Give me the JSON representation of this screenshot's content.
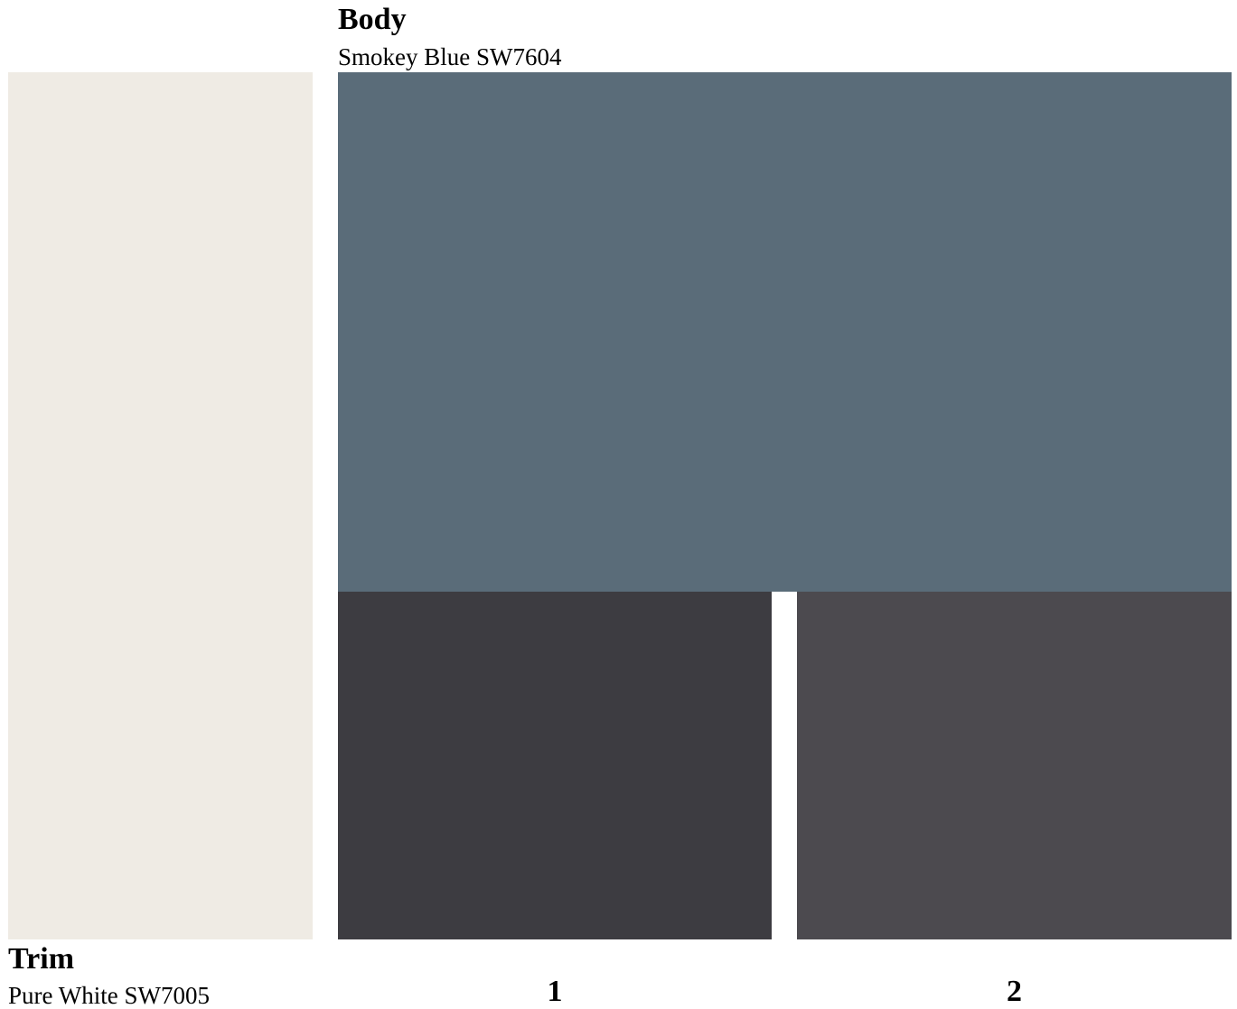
{
  "body": {
    "heading": "Body",
    "color_name": "Smokey Blue SW7604",
    "color": "#5a6c79"
  },
  "trim": {
    "heading": "Trim",
    "color_name": "Pure White SW7005",
    "color": "#efebe4"
  },
  "options": [
    {
      "label": "1",
      "color": "#3d3c41"
    },
    {
      "label": "2",
      "color": "#4c4a4f"
    }
  ]
}
